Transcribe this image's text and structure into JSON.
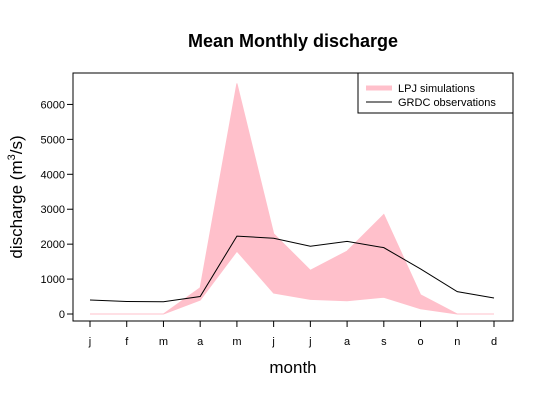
{
  "chart_data": {
    "type": "area",
    "title": "Mean Monthly discharge",
    "xlabel": "month",
    "ylabel_main": "discharge (m",
    "ylabel_sup": "3",
    "ylabel_end": "/s)",
    "categories": [
      "j",
      "f",
      "m",
      "a",
      "m",
      "j",
      "j",
      "a",
      "s",
      "o",
      "n",
      "d"
    ],
    "ylim": [
      -200,
      6900
    ],
    "yticks": [
      0,
      1000,
      2000,
      3000,
      4000,
      5000,
      6000
    ],
    "band": {
      "name": "LPJ simulations",
      "color": "#ffc0cb",
      "lower": [
        0,
        0,
        0,
        400,
        1800,
        600,
        420,
        380,
        480,
        150,
        0,
        0
      ],
      "upper": [
        0,
        0,
        0,
        750,
        6600,
        2300,
        1250,
        1800,
        2850,
        550,
        0,
        0
      ]
    },
    "series": [
      {
        "name": "GRDC observations",
        "color": "#000000",
        "values": [
          400,
          360,
          350,
          500,
          2230,
          2170,
          1940,
          2080,
          1900,
          1290,
          640,
          460
        ]
      }
    ],
    "legend_position": "top-right",
    "grid": false
  }
}
